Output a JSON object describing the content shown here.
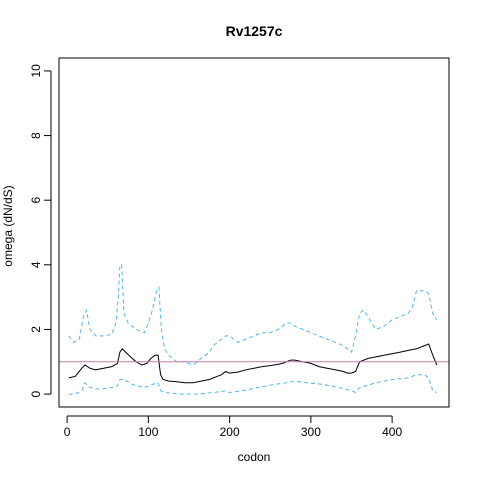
{
  "chart_data": {
    "type": "line",
    "title": "Rv1257c",
    "xlabel": "codon",
    "ylabel": "omega (dN/dS)",
    "xlim": [
      -10,
      470
    ],
    "ylim": [
      -0.4,
      10.4
    ],
    "xticks": [
      0,
      100,
      200,
      300,
      400
    ],
    "yticks": [
      0,
      2,
      4,
      6,
      8,
      10
    ],
    "reference_line": {
      "y": 1,
      "color": "#CC79A7"
    },
    "colors": {
      "mean": "#000000",
      "ci": "#56B4E9"
    },
    "series": [
      {
        "role": "mean",
        "style": "solid",
        "x": [
          2,
          10,
          18,
          22,
          28,
          35,
          45,
          55,
          62,
          65,
          68,
          72,
          78,
          85,
          92,
          98,
          103,
          108,
          112,
          115,
          118,
          125,
          135,
          145,
          155,
          165,
          175,
          185,
          190,
          195,
          200,
          210,
          220,
          230,
          240,
          250,
          260,
          265,
          270,
          275,
          280,
          290,
          300,
          310,
          320,
          330,
          340,
          345,
          350,
          355,
          360,
          370,
          380,
          390,
          400,
          410,
          420,
          430,
          440,
          445,
          450,
          455
        ],
        "y": [
          0.5,
          0.55,
          0.8,
          0.9,
          0.8,
          0.75,
          0.8,
          0.85,
          0.95,
          1.3,
          1.4,
          1.3,
          1.15,
          1.0,
          0.9,
          0.95,
          1.1,
          1.2,
          1.2,
          0.6,
          0.45,
          0.4,
          0.38,
          0.35,
          0.35,
          0.4,
          0.45,
          0.55,
          0.6,
          0.7,
          0.65,
          0.68,
          0.75,
          0.8,
          0.85,
          0.88,
          0.92,
          0.95,
          1.0,
          1.05,
          1.05,
          1.0,
          0.95,
          0.85,
          0.8,
          0.75,
          0.7,
          0.65,
          0.65,
          0.7,
          1.0,
          1.1,
          1.15,
          1.2,
          1.25,
          1.3,
          1.35,
          1.4,
          1.5,
          1.55,
          1.2,
          0.9
        ]
      },
      {
        "role": "upper-ci",
        "style": "dashed",
        "x": [
          2,
          8,
          15,
          20,
          24,
          28,
          35,
          45,
          55,
          60,
          63,
          65,
          67,
          70,
          75,
          85,
          95,
          100,
          105,
          110,
          113,
          116,
          120,
          125,
          130,
          135,
          145,
          155,
          165,
          175,
          180,
          185,
          190,
          195,
          200,
          210,
          220,
          230,
          240,
          250,
          260,
          265,
          270,
          275,
          280,
          290,
          300,
          310,
          320,
          330,
          340,
          345,
          350,
          355,
          360,
          365,
          370,
          380,
          390,
          400,
          410,
          420,
          425,
          430,
          440,
          445,
          450,
          455
        ],
        "y": [
          1.8,
          1.6,
          1.7,
          2.4,
          2.6,
          2.0,
          1.8,
          1.8,
          1.85,
          2.2,
          3.0,
          4.0,
          4.0,
          2.5,
          2.2,
          2.0,
          1.9,
          2.2,
          2.6,
          3.2,
          3.3,
          2.0,
          1.4,
          1.2,
          1.1,
          1.0,
          1.0,
          0.9,
          1.1,
          1.3,
          1.5,
          1.6,
          1.7,
          1.8,
          1.8,
          1.6,
          1.7,
          1.8,
          1.9,
          1.9,
          2.0,
          2.1,
          2.2,
          2.2,
          2.1,
          2.0,
          1.9,
          1.8,
          1.7,
          1.6,
          1.5,
          1.4,
          1.3,
          1.8,
          2.5,
          2.6,
          2.4,
          2.0,
          2.1,
          2.3,
          2.4,
          2.5,
          2.7,
          3.2,
          3.2,
          3.1,
          2.5,
          2.3
        ]
      },
      {
        "role": "lower-ci",
        "style": "dashed",
        "x": [
          2,
          10,
          18,
          22,
          28,
          40,
          55,
          62,
          65,
          70,
          80,
          95,
          105,
          112,
          115,
          120,
          140,
          160,
          180,
          195,
          200,
          215,
          235,
          255,
          270,
          280,
          295,
          315,
          335,
          350,
          355,
          360,
          380,
          400,
          420,
          430,
          440,
          445,
          450,
          455
        ],
        "y": [
          0.0,
          0.0,
          0.1,
          0.35,
          0.2,
          0.15,
          0.2,
          0.25,
          0.45,
          0.45,
          0.3,
          0.2,
          0.3,
          0.35,
          0.1,
          0.05,
          0.0,
          0.0,
          0.05,
          0.1,
          0.05,
          0.1,
          0.2,
          0.3,
          0.35,
          0.4,
          0.35,
          0.3,
          0.2,
          0.1,
          0.05,
          0.2,
          0.35,
          0.45,
          0.5,
          0.6,
          0.6,
          0.5,
          0.1,
          0.05
        ]
      }
    ]
  }
}
